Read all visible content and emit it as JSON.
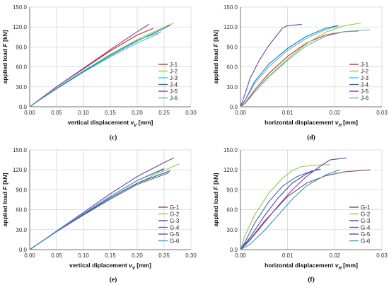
{
  "chart_data": [
    {
      "type": "line",
      "panel": "(c)",
      "xlabel": "vertical displacement v_V [mm]",
      "ylabel": "applied load F [kN]",
      "xlim": [
        0,
        0.3
      ],
      "ylim": [
        0,
        150
      ],
      "xticks": [
        "0.00",
        "0.05",
        "0.10",
        "0.15",
        "0.20",
        "0.25",
        "0.30"
      ],
      "yticks": [
        "0.0",
        "30.0",
        "60.0",
        "90.0",
        "120.0",
        "150.0"
      ],
      "grid": true,
      "legend": "lower-right",
      "series": [
        {
          "name": "J-1",
          "color": "#e02020",
          "x": [
            0,
            0.02,
            0.05,
            0.1,
            0.15,
            0.2,
            0.23
          ],
          "y": [
            0,
            12,
            30,
            57,
            84,
            108,
            118
          ]
        },
        {
          "name": "J-2",
          "color": "#8fce3a",
          "x": [
            0,
            0.02,
            0.05,
            0.1,
            0.15,
            0.2,
            0.25,
            0.268
          ],
          "y": [
            0,
            11,
            28,
            54,
            79,
            101,
            120,
            126
          ]
        },
        {
          "name": "J-3",
          "color": "#3ec8e0",
          "x": [
            0,
            0.02,
            0.05,
            0.1,
            0.15,
            0.2,
            0.24
          ],
          "y": [
            0,
            11,
            27,
            52,
            75,
            96,
            110
          ]
        },
        {
          "name": "J-4",
          "color": "#2a6db5",
          "x": [
            0,
            0.02,
            0.05,
            0.1,
            0.15,
            0.2,
            0.25,
            0.262
          ],
          "y": [
            0,
            11,
            27,
            53,
            77,
            99,
            118,
            123
          ]
        },
        {
          "name": "J-5",
          "color": "#7b3fa0",
          "x": [
            0,
            0.02,
            0.05,
            0.1,
            0.15,
            0.2,
            0.222
          ],
          "y": [
            0,
            12,
            30,
            58,
            86,
            113,
            124
          ]
        },
        {
          "name": "J-6",
          "color": "#5ab8a8",
          "x": [
            0,
            0.02,
            0.05,
            0.1,
            0.15,
            0.2,
            0.245
          ],
          "y": [
            0,
            11,
            28,
            54,
            78,
            100,
            113
          ]
        }
      ]
    },
    {
      "type": "line",
      "panel": "(d)",
      "xlabel": "horizontal displacement v_H [mm]",
      "ylabel": "applied load F [kN]",
      "xlim": [
        0,
        0.03
      ],
      "ylim": [
        0,
        150
      ],
      "xticks": [
        "0.00",
        "0.01",
        "0.02",
        "0.03"
      ],
      "yticks": [
        "0.0",
        "30.0",
        "60.0",
        "90.0",
        "120.0",
        "150.0"
      ],
      "grid": true,
      "legend": "lower-right",
      "series": [
        {
          "name": "J-1",
          "color": "#e02020",
          "x": [
            0,
            0.001,
            0.003,
            0.006,
            0.01,
            0.014,
            0.018,
            0.022,
            0.025
          ],
          "y": [
            0,
            6,
            25,
            50,
            76,
            96,
            108,
            113,
            114
          ]
        },
        {
          "name": "J-2",
          "color": "#8fce3a",
          "x": [
            0,
            0.001,
            0.003,
            0.006,
            0.01,
            0.014,
            0.018,
            0.022,
            0.0255
          ],
          "y": [
            0,
            5,
            22,
            46,
            72,
            95,
            112,
            122,
            126
          ]
        },
        {
          "name": "J-3",
          "color": "#3ec8e0",
          "x": [
            0,
            0.001,
            0.003,
            0.006,
            0.01,
            0.014,
            0.018,
            0.021
          ],
          "y": [
            0,
            10,
            35,
            60,
            85,
            103,
            116,
            122
          ]
        },
        {
          "name": "J-4",
          "color": "#2a6db5",
          "x": [
            0,
            0.001,
            0.003,
            0.006,
            0.01,
            0.014,
            0.018,
            0.0205
          ],
          "y": [
            0,
            10,
            38,
            64,
            88,
            106,
            118,
            122
          ]
        },
        {
          "name": "J-5",
          "color": "#7b3fa0",
          "x": [
            0,
            0.001,
            0.002,
            0.004,
            0.006,
            0.008,
            0.009,
            0.01,
            0.013
          ],
          "y": [
            0,
            20,
            42,
            70,
            92,
            110,
            119,
            122,
            124
          ]
        },
        {
          "name": "J-6",
          "color": "#5ab8a8",
          "x": [
            0,
            0.001,
            0.003,
            0.006,
            0.01,
            0.014,
            0.018,
            0.022,
            0.0275
          ],
          "y": [
            0,
            5,
            22,
            45,
            70,
            92,
            106,
            113,
            116
          ]
        }
      ]
    },
    {
      "type": "line",
      "panel": "(e)",
      "xlabel": "vertical diplacement v_V [mm]",
      "ylabel": "applied load F [kN]",
      "xlim": [
        0,
        0.3
      ],
      "ylim": [
        0,
        150
      ],
      "xticks": [
        "0.00",
        "0.05",
        "0.10",
        "0.15",
        "0.20",
        "0.25",
        "0.30"
      ],
      "yticks": [
        "0.0",
        "30.0",
        "60.0",
        "90.0",
        "120.0",
        "150.0"
      ],
      "grid": true,
      "legend": "lower-right",
      "series": [
        {
          "name": "G-1",
          "color": "#8b4a4a",
          "x": [
            0,
            0.02,
            0.05,
            0.1,
            0.15,
            0.2,
            0.25
          ],
          "y": [
            0,
            11,
            27,
            54,
            80,
            104,
            121
          ]
        },
        {
          "name": "G-2",
          "color": "#8fce3a",
          "x": [
            0,
            0.02,
            0.05,
            0.1,
            0.15,
            0.2,
            0.25,
            0.278
          ],
          "y": [
            0,
            11,
            27,
            53,
            78,
            100,
            119,
            129
          ]
        },
        {
          "name": "G-3",
          "color": "#3a4aa8",
          "x": [
            0,
            0.02,
            0.05,
            0.1,
            0.15,
            0.2,
            0.262
          ],
          "y": [
            0,
            11,
            27,
            53,
            78,
            100,
            119
          ]
        },
        {
          "name": "G-4",
          "color": "#4a6a9a",
          "x": [
            0,
            0.02,
            0.05,
            0.1,
            0.15,
            0.2,
            0.26
          ],
          "y": [
            0,
            11,
            27,
            52,
            76,
            98,
            116
          ]
        },
        {
          "name": "G-5",
          "color": "#7b3fa0",
          "x": [
            0,
            0.02,
            0.05,
            0.1,
            0.15,
            0.2,
            0.25,
            0.268
          ],
          "y": [
            0,
            11,
            28,
            56,
            84,
            110,
            131,
            138
          ]
        },
        {
          "name": "G-6",
          "color": "#2f9ad0",
          "x": [
            0,
            0.02,
            0.05,
            0.1,
            0.15,
            0.2,
            0.25
          ],
          "y": [
            0,
            11,
            27,
            54,
            80,
            104,
            122
          ]
        }
      ]
    },
    {
      "type": "line",
      "panel": "(f)",
      "xlabel": "horizontal displacement v_H [mm]",
      "ylabel": "applied load F [kN]",
      "xlim": [
        0,
        0.03
      ],
      "ylim": [
        0,
        150
      ],
      "xticks": [
        "0.00",
        "0.01",
        "0.02",
        "0.03"
      ],
      "yticks": [
        "0.0",
        "30.0",
        "60.0",
        "90.0",
        "120.0",
        "150.0"
      ],
      "grid": true,
      "legend": "lower-right",
      "series": [
        {
          "name": "G-1",
          "color": "#8b4a4a",
          "x": [
            0,
            0.002,
            0.005,
            0.01,
            0.014,
            0.018,
            0.022,
            0.0275
          ],
          "y": [
            0,
            15,
            42,
            80,
            100,
            111,
            117,
            120
          ]
        },
        {
          "name": "G-2",
          "color": "#8fce3a",
          "x": [
            0,
            0.001,
            0.003,
            0.006,
            0.009,
            0.011,
            0.013,
            0.016,
            0.019
          ],
          "y": [
            0,
            22,
            52,
            85,
            108,
            119,
            125,
            127,
            128
          ]
        },
        {
          "name": "G-3",
          "color": "#3a4aa8",
          "x": [
            0,
            0.002,
            0.005,
            0.008,
            0.011,
            0.014,
            0.016,
            0.017
          ],
          "y": [
            0,
            18,
            50,
            78,
            100,
            114,
            120,
            121
          ]
        },
        {
          "name": "G-4",
          "color": "#4a6a9a",
          "x": [
            0,
            0.001,
            0.003,
            0.006,
            0.009,
            0.012,
            0.015,
            0.0165
          ],
          "y": [
            0,
            12,
            40,
            72,
            96,
            110,
            118,
            120
          ]
        },
        {
          "name": "G-5",
          "color": "#7b3fa0",
          "x": [
            0,
            0.002,
            0.005,
            0.008,
            0.011,
            0.014,
            0.017,
            0.019,
            0.0225
          ],
          "y": [
            0,
            14,
            40,
            66,
            90,
            110,
            126,
            135,
            138
          ]
        },
        {
          "name": "G-6",
          "color": "#2f9ad0",
          "x": [
            0,
            0.002,
            0.005,
            0.008,
            0.011,
            0.014,
            0.018,
            0.021
          ],
          "y": [
            0,
            8,
            28,
            52,
            76,
            96,
            112,
            120
          ]
        }
      ]
    }
  ]
}
